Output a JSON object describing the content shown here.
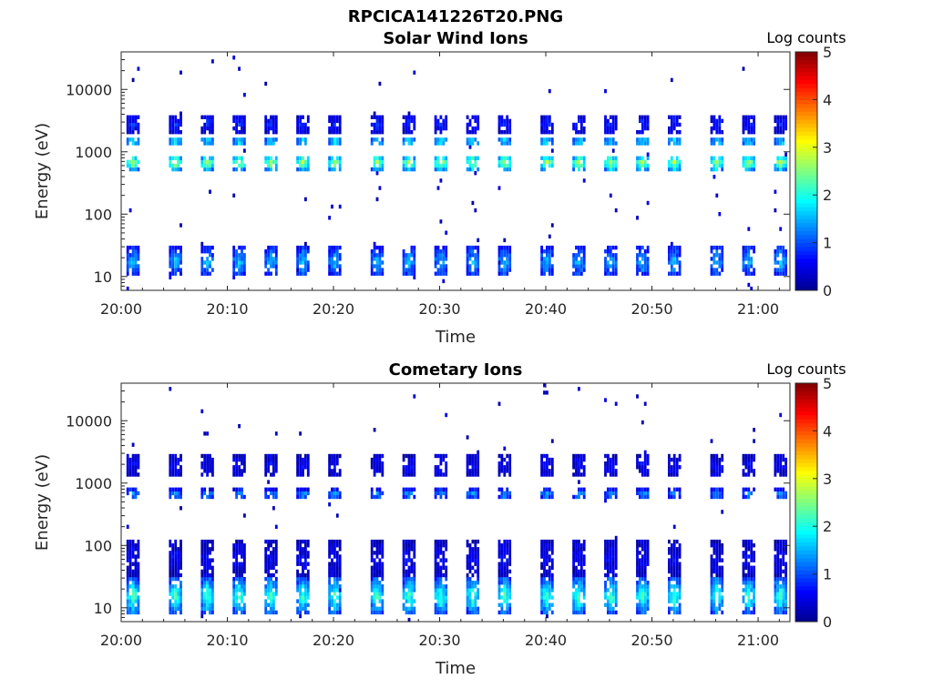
{
  "figure_title": "RPCICA141226T20.PNG",
  "colormap": {
    "stops": [
      "#00008f",
      "#0000ff",
      "#00ffff",
      "#ffff00",
      "#ff0000",
      "#800000"
    ]
  },
  "chart_data": [
    {
      "type": "heatmap",
      "title": "Solar Wind Ions",
      "xlabel": "Time",
      "ylabel": "Energy (eV)",
      "y_scale": "log",
      "ylim": [
        6,
        40000
      ],
      "xlim": [
        "20:00",
        "21:03"
      ],
      "x_ticks": [
        "20:00",
        "20:10",
        "20:20",
        "20:30",
        "20:40",
        "20:50",
        "21:00"
      ],
      "y_ticks": [
        "10",
        "100",
        "1000",
        "10000"
      ],
      "colorbar": {
        "label": "Log counts",
        "min": 0,
        "max": 5,
        "ticks": [
          "0",
          "1",
          "2",
          "3",
          "4",
          "5"
        ]
      },
      "sweep_start_times": [
        "20:00",
        "20:04",
        "20:07",
        "20:10",
        "20:13",
        "20:16",
        "20:19",
        "20:23",
        "20:26",
        "20:29",
        "20:32",
        "20:35",
        "20:39",
        "20:42",
        "20:45",
        "20:48",
        "20:51",
        "20:55",
        "20:58",
        "21:01"
      ],
      "bands": [
        {
          "energy_min_eV": 10,
          "energy_max_eV": 30,
          "peak_log_counts": 1.6
        },
        {
          "energy_min_eV": 500,
          "energy_max_eV": 900,
          "peak_log_counts": 2.9
        },
        {
          "energy_min_eV": 1200,
          "energy_max_eV": 1800,
          "peak_log_counts": 2.0
        },
        {
          "energy_min_eV": 2000,
          "energy_max_eV": 4000,
          "peak_log_counts": 0.8
        }
      ]
    },
    {
      "type": "heatmap",
      "title": "Cometary Ions",
      "xlabel": "Time",
      "ylabel": "Energy (eV)",
      "y_scale": "log",
      "ylim": [
        6,
        40000
      ],
      "xlim": [
        "20:00",
        "21:03"
      ],
      "x_ticks": [
        "20:00",
        "20:10",
        "20:20",
        "20:30",
        "20:40",
        "20:50",
        "21:00"
      ],
      "y_ticks": [
        "10",
        "100",
        "1000",
        "10000"
      ],
      "colorbar": {
        "label": "Log counts",
        "min": 0,
        "max": 5,
        "ticks": [
          "0",
          "1",
          "2",
          "3",
          "4",
          "5"
        ]
      },
      "sweep_start_times": [
        "20:00",
        "20:04",
        "20:07",
        "20:10",
        "20:13",
        "20:16",
        "20:19",
        "20:23",
        "20:26",
        "20:29",
        "20:32",
        "20:35",
        "20:39",
        "20:42",
        "20:45",
        "20:48",
        "20:51",
        "20:55",
        "20:58",
        "21:01"
      ],
      "bands": [
        {
          "energy_min_eV": 8,
          "energy_max_eV": 30,
          "peak_log_counts": 2.3
        },
        {
          "energy_min_eV": 30,
          "energy_max_eV": 120,
          "peak_log_counts": 0.6
        },
        {
          "energy_min_eV": 550,
          "energy_max_eV": 800,
          "peak_log_counts": 1.5
        },
        {
          "energy_min_eV": 1200,
          "energy_max_eV": 3000,
          "peak_log_counts": 0.6
        }
      ]
    }
  ]
}
